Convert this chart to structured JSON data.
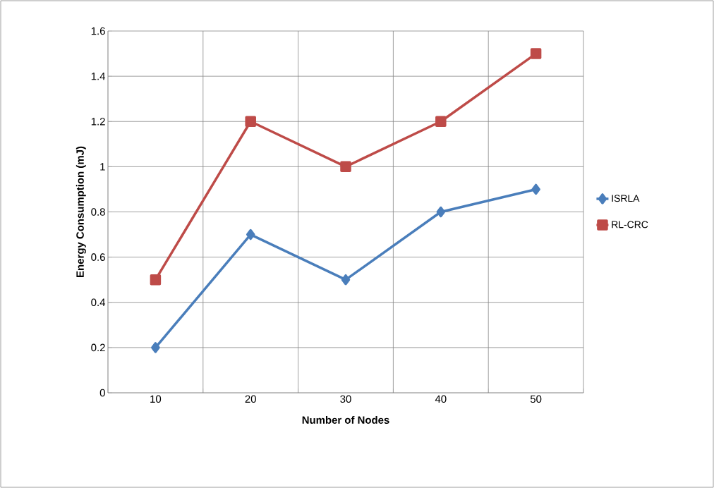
{
  "chart_data": {
    "type": "line",
    "xlabel": "Number of Nodes",
    "ylabel": "Energy Consumption (mJ)",
    "categories": [
      "10",
      "20",
      "30",
      "40",
      "50"
    ],
    "series": [
      {
        "name": "ISRLA",
        "color": "#4a7ebb",
        "marker": "diamond",
        "values": [
          0.2,
          0.7,
          0.5,
          0.8,
          0.9
        ]
      },
      {
        "name": "RL-CRC",
        "color": "#be4b48",
        "marker": "square",
        "values": [
          0.5,
          1.2,
          1.0,
          1.2,
          1.5
        ]
      }
    ],
    "ylim": [
      0,
      1.6
    ],
    "yticks": [
      0,
      0.2,
      0.4,
      0.6,
      0.8,
      1,
      1.2,
      1.4,
      1.6
    ],
    "grid": true,
    "legend": "right",
    "line_style": "solid"
  }
}
